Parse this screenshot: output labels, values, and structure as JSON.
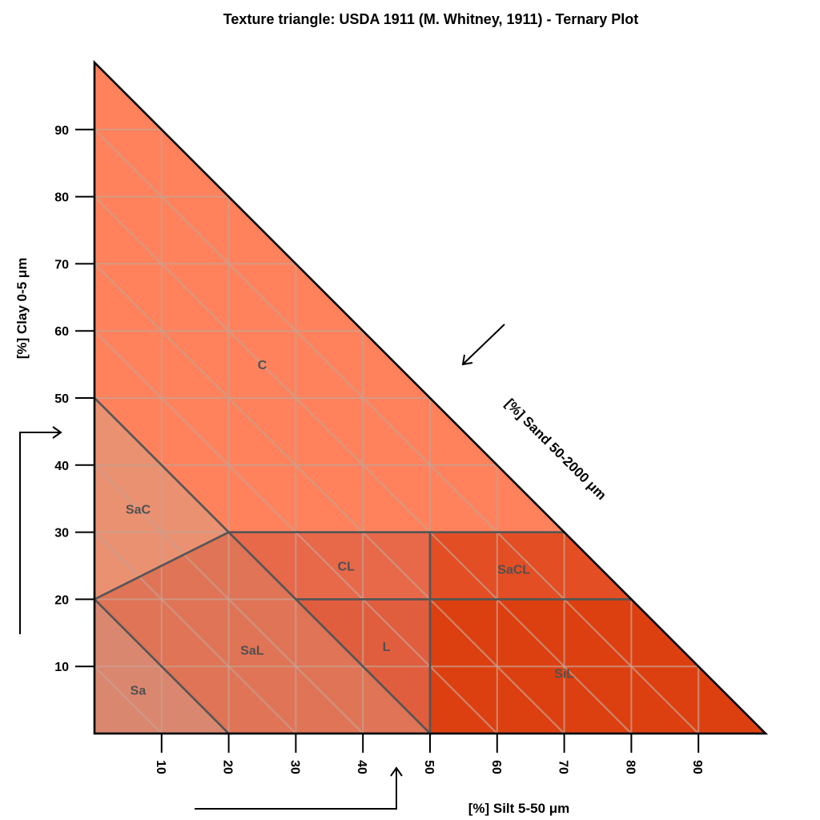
{
  "chart_data": {
    "type": "ternary",
    "title": "Texture triangle: USDA 1911 (M. Whitney, 1911) - Ternary Plot",
    "axes": {
      "clay": {
        "label": "[%] Clay 0-5 μm",
        "ticks": [
          10,
          20,
          30,
          40,
          50,
          60,
          70,
          80,
          90
        ]
      },
      "silt": {
        "label": "[%] Silt 5-50 μm",
        "ticks": [
          10,
          20,
          30,
          40,
          50,
          60,
          70,
          80,
          90
        ]
      },
      "sand": {
        "label": "[%] Sand 50-2000 μm"
      }
    },
    "grid": true,
    "classes": [
      {
        "name": "C",
        "color": "#ff825c",
        "label_at": {
          "silt": 25,
          "clay": 55
        },
        "vertices": [
          {
            "silt": 0,
            "clay": 100
          },
          {
            "silt": 0,
            "clay": 50
          },
          {
            "silt": 20,
            "clay": 30
          },
          {
            "silt": 70,
            "clay": 30
          }
        ]
      },
      {
        "name": "SaC",
        "color": "#ea9172",
        "label_at": {
          "silt": 6.5,
          "clay": 33.5
        },
        "vertices": [
          {
            "silt": 0,
            "clay": 50
          },
          {
            "silt": 0,
            "clay": 20
          },
          {
            "silt": 20,
            "clay": 30
          }
        ]
      },
      {
        "name": "Sa",
        "color": "#da8770",
        "label_at": {
          "silt": 6.5,
          "clay": 6.5
        },
        "vertices": [
          {
            "silt": 0,
            "clay": 20
          },
          {
            "silt": 0,
            "clay": 0
          },
          {
            "silt": 20,
            "clay": 0
          }
        ]
      },
      {
        "name": "SaL",
        "color": "#e07456",
        "label_at": {
          "silt": 23.5,
          "clay": 12.5
        },
        "vertices": [
          {
            "silt": 0,
            "clay": 20
          },
          {
            "silt": 20,
            "clay": 30
          },
          {
            "silt": 30,
            "clay": 20
          },
          {
            "silt": 50,
            "clay": 0
          },
          {
            "silt": 20,
            "clay": 0
          }
        ]
      },
      {
        "name": "CL",
        "color": "#e8684a",
        "label_at": {
          "silt": 37.5,
          "clay": 25
        },
        "vertices": [
          {
            "silt": 20,
            "clay": 30
          },
          {
            "silt": 50,
            "clay": 30
          },
          {
            "silt": 50,
            "clay": 20
          },
          {
            "silt": 30,
            "clay": 20
          }
        ]
      },
      {
        "name": "L",
        "color": "#e05e3e",
        "label_at": {
          "silt": 43.5,
          "clay": 13
        },
        "vertices": [
          {
            "silt": 30,
            "clay": 20
          },
          {
            "silt": 50,
            "clay": 20
          },
          {
            "silt": 50,
            "clay": 0
          }
        ]
      },
      {
        "name": "SaCL",
        "color": "#e44e24",
        "label_at": {
          "silt": 62.5,
          "clay": 24.5
        },
        "vertices": [
          {
            "silt": 50,
            "clay": 30
          },
          {
            "silt": 70,
            "clay": 30
          },
          {
            "silt": 80,
            "clay": 20
          },
          {
            "silt": 50,
            "clay": 20
          }
        ]
      },
      {
        "name": "SiL",
        "color": "#dd4010",
        "label_at": {
          "silt": 70,
          "clay": 9
        },
        "vertices": [
          {
            "silt": 50,
            "clay": 20
          },
          {
            "silt": 80,
            "clay": 20
          },
          {
            "silt": 100,
            "clay": 0
          },
          {
            "silt": 50,
            "clay": 0
          }
        ]
      }
    ]
  },
  "colors": {
    "frame": "#000000",
    "class_border": "#555555",
    "grid": "#c8a090",
    "class_label": "#505050"
  }
}
